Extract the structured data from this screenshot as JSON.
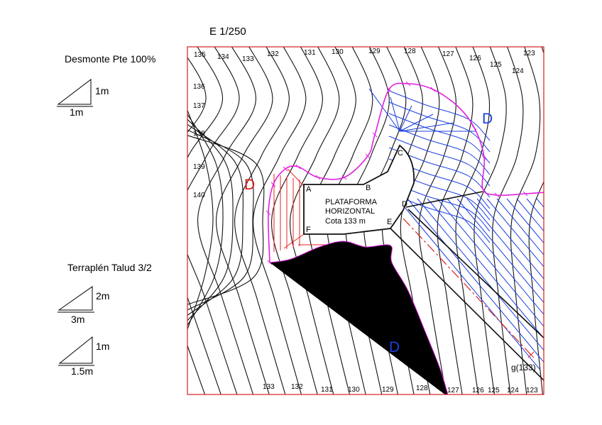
{
  "scale_label": "E 1/250",
  "legend": {
    "cut_title": "Desmonte Pte 100%",
    "cut_rise": "1m",
    "cut_run": "1m",
    "fill_title": "Terraplén Talud 3/2",
    "fill1_rise": "2m",
    "fill1_run": "3m",
    "fill2_rise": "1m",
    "fill2_run": "1.5m"
  },
  "platform": {
    "line1": "PLATAFORMA",
    "line2": "HORIZONTAL",
    "line3": "Cota 133 m",
    "vertices": [
      "A",
      "B",
      "C",
      "D",
      "E",
      "F"
    ]
  },
  "zone_labels": {
    "left": "D",
    "upper_right": "D",
    "lower": "D"
  },
  "slope_point_label": "g(133)",
  "contours": {
    "top": [
      "135",
      "134",
      "133",
      "132",
      "131",
      "130",
      "129",
      "128",
      "127",
      "126",
      "125",
      "124",
      "123"
    ],
    "left": [
      "136",
      "137",
      "138",
      "139",
      "140"
    ],
    "bottom": [
      "133",
      "132",
      "131",
      "130",
      "129",
      "128",
      "127",
      "126",
      "125",
      "124",
      "123"
    ]
  },
  "colors": {
    "frame": "#d62020",
    "contour": "#111111",
    "daylight": "#e020e0",
    "cut_hatch": "#1a3fe0",
    "fill_hatch": "#ee2020",
    "axis_dashdot": "#dd2020"
  }
}
